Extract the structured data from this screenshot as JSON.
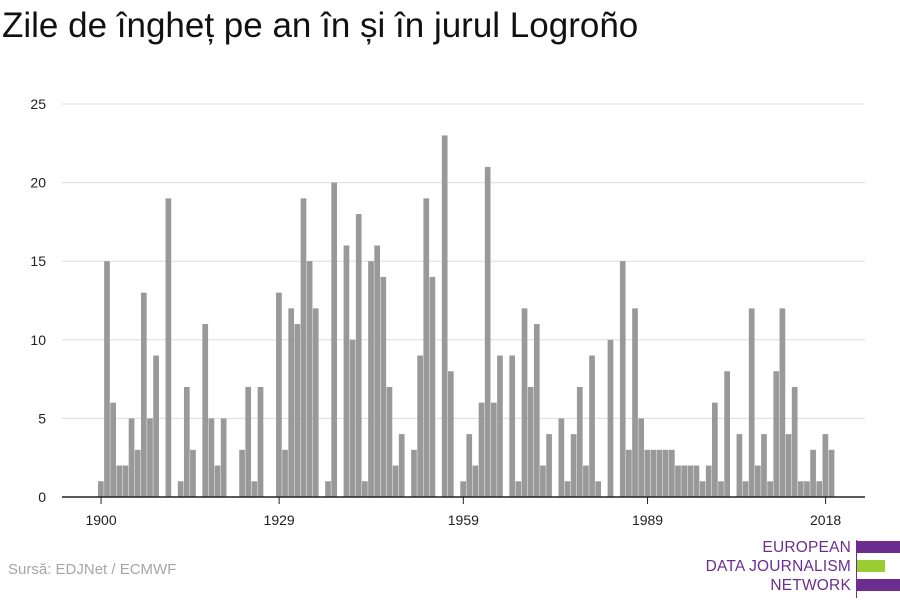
{
  "title": "Zile de îngheț pe an în și în jurul Logroño",
  "source": "Sursă: EDJNet / ECMWF",
  "logo": {
    "line1": "EUROPEAN",
    "line2": "DATA JOURNALISM",
    "line3": "NETWORK",
    "colors": {
      "purple": "#6b2e8f",
      "green": "#9acd32"
    }
  },
  "colors": {
    "bar": "#999999",
    "grid": "#dddddd",
    "axis": "#222222"
  },
  "chart_data": {
    "type": "bar",
    "title": "Zile de îngheț pe an în și în jurul Logroño",
    "xlabel": "",
    "ylabel": "",
    "ylim": [
      0,
      25
    ],
    "yticks": [
      0,
      5,
      10,
      15,
      20,
      25
    ],
    "xticks": [
      1900,
      1929,
      1959,
      1989,
      2018
    ],
    "grid": true,
    "categories": [
      1900,
      1901,
      1902,
      1903,
      1904,
      1905,
      1906,
      1907,
      1908,
      1909,
      1910,
      1911,
      1912,
      1913,
      1914,
      1915,
      1916,
      1917,
      1918,
      1919,
      1920,
      1921,
      1922,
      1923,
      1924,
      1925,
      1926,
      1927,
      1928,
      1929,
      1930,
      1931,
      1932,
      1933,
      1934,
      1935,
      1936,
      1937,
      1938,
      1939,
      1940,
      1941,
      1942,
      1943,
      1944,
      1945,
      1946,
      1947,
      1948,
      1949,
      1950,
      1951,
      1952,
      1953,
      1954,
      1955,
      1956,
      1957,
      1958,
      1959,
      1960,
      1961,
      1962,
      1963,
      1964,
      1965,
      1966,
      1967,
      1968,
      1969,
      1970,
      1971,
      1972,
      1973,
      1974,
      1975,
      1976,
      1977,
      1978,
      1979,
      1980,
      1981,
      1982,
      1983,
      1984,
      1985,
      1986,
      1987,
      1988,
      1989,
      1990,
      1991,
      1992,
      1993,
      1994,
      1995,
      1996,
      1997,
      1998,
      1999,
      2000,
      2001,
      2002,
      2003,
      2004,
      2005,
      2006,
      2007,
      2008,
      2009,
      2010,
      2011,
      2012,
      2013,
      2014,
      2015,
      2016,
      2017,
      2018,
      2019
    ],
    "values": [
      1,
      15,
      6,
      2,
      2,
      5,
      3,
      13,
      5,
      9,
      0,
      19,
      0,
      1,
      7,
      3,
      0,
      11,
      5,
      2,
      5,
      0,
      0,
      3,
      7,
      1,
      7,
      0,
      0,
      13,
      3,
      12,
      11,
      19,
      15,
      12,
      0,
      1,
      20,
      0,
      16,
      10,
      18,
      1,
      15,
      16,
      14,
      7,
      2,
      4,
      0,
      3,
      9,
      19,
      14,
      0,
      23,
      8,
      0,
      1,
      4,
      2,
      6,
      21,
      6,
      9,
      0,
      9,
      1,
      12,
      7,
      11,
      2,
      4,
      0,
      5,
      1,
      4,
      7,
      2,
      9,
      1,
      0,
      10,
      0,
      15,
      3,
      12,
      5,
      3,
      3,
      3,
      3,
      3,
      2,
      2,
      2,
      2,
      1,
      2,
      6,
      1,
      8,
      0,
      4,
      1,
      12,
      2,
      4,
      1,
      8,
      12,
      4,
      7,
      1,
      1,
      3,
      1,
      4,
      3
    ]
  }
}
